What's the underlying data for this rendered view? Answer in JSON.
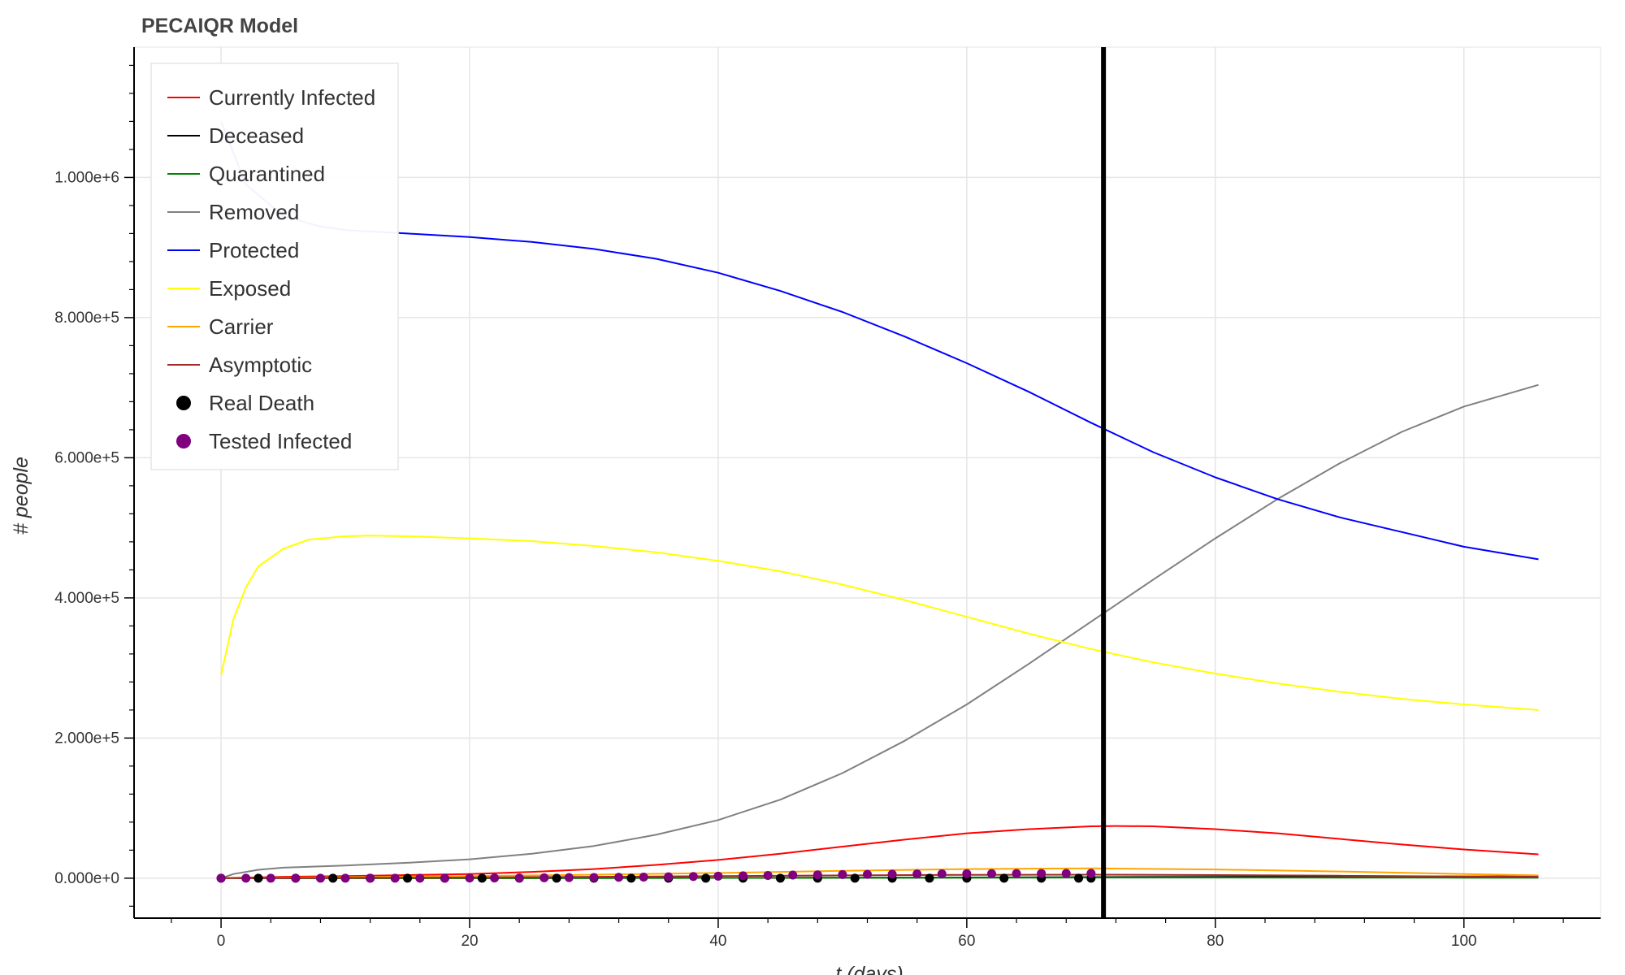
{
  "chart_data": {
    "type": "line",
    "title": "PECAIQR Model",
    "xlabel": "t (days)",
    "ylabel": "# people",
    "xlim": [
      -7,
      111
    ],
    "ylim": [
      -57000,
      1186000
    ],
    "x_ticks": [
      0,
      20,
      40,
      60,
      80,
      100
    ],
    "x_tick_labels": [
      "0",
      "20",
      "40",
      "60",
      "80",
      "100"
    ],
    "y_ticks": [
      0,
      200000,
      400000,
      600000,
      800000,
      1000000
    ],
    "y_tick_labels": [
      "0.000e+0",
      "2.000e+5",
      "4.000e+5",
      "6.000e+5",
      "8.000e+5",
      "1.000e+6"
    ],
    "grid": true,
    "legend_position": "top-left",
    "vertical_line": {
      "x": 71,
      "color": "#000000"
    },
    "series": [
      {
        "name": "Currently Infected",
        "kind": "line",
        "color": "#ff0000",
        "x": [
          0,
          5,
          10,
          15,
          20,
          25,
          30,
          35,
          40,
          45,
          50,
          55,
          60,
          65,
          70,
          72,
          75,
          80,
          85,
          90,
          95,
          100,
          106
        ],
        "y": [
          0,
          2000,
          3000,
          4500,
          6000,
          9000,
          13000,
          19000,
          26000,
          35000,
          45000,
          55000,
          64000,
          70000,
          74000,
          74500,
          74000,
          70000,
          64000,
          56000,
          48000,
          41000,
          34000
        ]
      },
      {
        "name": "Deceased",
        "kind": "line",
        "color": "#000000",
        "x": [
          0,
          20,
          40,
          60,
          71,
          80,
          90,
          100,
          106
        ],
        "y": [
          0,
          100,
          400,
          1000,
          1500,
          1900,
          2200,
          2500,
          2600
        ]
      },
      {
        "name": "Quarantined",
        "kind": "line",
        "color": "#008000",
        "x": [
          0,
          20,
          40,
          60,
          71,
          80,
          90,
          100,
          106
        ],
        "y": [
          0,
          100,
          400,
          800,
          1000,
          1000,
          900,
          800,
          700
        ]
      },
      {
        "name": "Removed",
        "kind": "line",
        "color": "#808080",
        "x": [
          0,
          1,
          3,
          5,
          10,
          15,
          20,
          25,
          30,
          35,
          40,
          45,
          50,
          55,
          60,
          65,
          70,
          75,
          80,
          85,
          90,
          95,
          100,
          106
        ],
        "y": [
          0,
          6000,
          12000,
          15000,
          18000,
          22000,
          27000,
          35000,
          46000,
          62000,
          83000,
          112000,
          150000,
          196000,
          248000,
          306000,
          366000,
          426000,
          485000,
          541000,
          592000,
          637000,
          673000,
          704000
        ]
      },
      {
        "name": "Protected",
        "kind": "line",
        "color": "#0000ff",
        "x": [
          0,
          2,
          5,
          8,
          10,
          15,
          20,
          25,
          30,
          35,
          40,
          45,
          50,
          55,
          60,
          65,
          70,
          75,
          80,
          85,
          90,
          95,
          100,
          106
        ],
        "y": [
          1080000,
          990000,
          945000,
          930000,
          925000,
          920000,
          915000,
          908000,
          898000,
          884000,
          864000,
          838000,
          808000,
          773000,
          735000,
          694000,
          650000,
          608000,
          572000,
          541000,
          515000,
          494000,
          473000,
          455000
        ]
      },
      {
        "name": "Exposed",
        "kind": "line",
        "color": "#ffff00",
        "x": [
          0,
          1,
          2,
          3,
          5,
          7,
          10,
          12,
          15,
          20,
          25,
          30,
          35,
          40,
          45,
          50,
          55,
          60,
          65,
          70,
          75,
          80,
          85,
          90,
          95,
          100,
          106
        ],
        "y": [
          290000,
          370000,
          415000,
          445000,
          470000,
          483000,
          488000,
          489000,
          488000,
          485000,
          481000,
          474000,
          465000,
          453000,
          438000,
          419000,
          397000,
          373000,
          349000,
          327000,
          308000,
          292000,
          278000,
          266000,
          256000,
          248000,
          240000
        ]
      },
      {
        "name": "Carrier",
        "kind": "line",
        "color": "#ffa500",
        "x": [
          0,
          10,
          20,
          30,
          40,
          50,
          60,
          70,
          80,
          90,
          100,
          106
        ],
        "y": [
          0,
          1500,
          3000,
          5000,
          7500,
          10500,
          13000,
          14000,
          12500,
          9500,
          6000,
          4000
        ]
      },
      {
        "name": "Asymptotic",
        "kind": "line",
        "color": "#a52a2a",
        "x": [
          0,
          10,
          20,
          30,
          40,
          50,
          60,
          70,
          80,
          90,
          100,
          106
        ],
        "y": [
          0,
          500,
          1000,
          2000,
          3000,
          4000,
          4800,
          5000,
          4500,
          3500,
          2500,
          2000
        ]
      },
      {
        "name": "Real Death",
        "kind": "scatter",
        "color": "#000000",
        "x": [
          0,
          3,
          6,
          9,
          12,
          15,
          18,
          21,
          24,
          27,
          30,
          33,
          36,
          39,
          42,
          45,
          48,
          51,
          54,
          57,
          60,
          63,
          66,
          69,
          70
        ],
        "y": [
          0,
          0,
          0,
          0,
          0,
          0,
          0,
          0,
          0,
          0,
          0,
          0,
          0,
          0,
          0,
          0,
          0,
          0,
          0,
          0,
          0,
          0,
          0,
          0,
          0
        ]
      },
      {
        "name": "Tested Infected",
        "kind": "scatter",
        "color": "#800080",
        "x": [
          0,
          2,
          4,
          6,
          8,
          10,
          12,
          14,
          16,
          18,
          20,
          22,
          24,
          26,
          28,
          30,
          32,
          34,
          36,
          38,
          40,
          42,
          44,
          46,
          48,
          50,
          52,
          54,
          56,
          58,
          60,
          62,
          64,
          66,
          68,
          70
        ],
        "y": [
          0,
          0,
          0,
          0,
          0,
          0,
          0,
          0,
          0,
          0,
          200,
          300,
          400,
          600,
          800,
          1000,
          1300,
          1600,
          2000,
          2400,
          2900,
          3400,
          3900,
          4400,
          4800,
          5200,
          5500,
          5800,
          6000,
          6200,
          6400,
          6500,
          6600,
          6700,
          6800,
          6900
        ]
      }
    ]
  }
}
